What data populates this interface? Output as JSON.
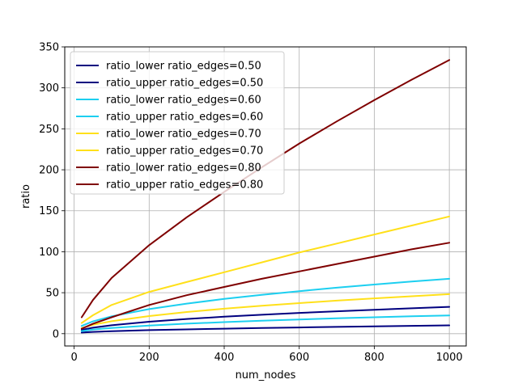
{
  "chart_data": {
    "type": "line",
    "title": "",
    "xlabel": "num_nodes",
    "ylabel": "ratio",
    "xlim": [
      -25,
      1045
    ],
    "ylim": [
      -15,
      350
    ],
    "xticks": [
      0,
      200,
      400,
      600,
      800,
      1000
    ],
    "yticks": [
      0,
      50,
      100,
      150,
      200,
      250,
      300,
      350
    ],
    "grid": true,
    "legend_position": "top-left",
    "series": [
      {
        "name": "ratio_lower  ratio_edges=0.50",
        "color": "#00007f",
        "x": [
          20,
          50,
          100,
          200,
          300,
          400,
          500,
          600,
          700,
          800,
          900,
          1000
        ],
        "y": [
          1.4,
          2.2,
          3.0,
          4.3,
          5.2,
          6.1,
          6.9,
          7.6,
          8.3,
          9.0,
          9.6,
          10.2
        ]
      },
      {
        "name": "ratio_upper  ratio_edges=0.50",
        "color": "#00007f",
        "x": [
          20,
          50,
          100,
          200,
          300,
          400,
          500,
          600,
          700,
          800,
          900,
          1000
        ],
        "y": [
          4.6,
          7.3,
          10.3,
          14.6,
          17.9,
          20.7,
          23.1,
          25.3,
          27.3,
          29.2,
          31.0,
          32.7
        ]
      },
      {
        "name": "ratio_lower  ratio_edges=0.60",
        "color": "#1ccff0",
        "x": [
          20,
          50,
          100,
          200,
          300,
          400,
          500,
          600,
          700,
          800,
          900,
          1000
        ],
        "y": [
          3.2,
          5.0,
          7.0,
          9.9,
          12.2,
          14.1,
          15.8,
          17.3,
          18.7,
          20.0,
          21.2,
          22.3
        ]
      },
      {
        "name": "ratio_upper  ratio_edges=0.60",
        "color": "#1ccff0",
        "x": [
          20,
          50,
          100,
          200,
          300,
          400,
          500,
          600,
          700,
          800,
          900,
          1000
        ],
        "y": [
          9.5,
          15.0,
          21.2,
          30.0,
          36.7,
          42.4,
          47.4,
          51.9,
          56.1,
          60.0,
          63.6,
          67.0
        ]
      },
      {
        "name": "ratio_lower  ratio_edges=0.70",
        "color": "#ffe01a",
        "x": [
          20,
          50,
          100,
          200,
          300,
          400,
          500,
          600,
          700,
          800,
          900,
          1000
        ],
        "y": [
          6.8,
          10.8,
          15.2,
          21.5,
          26.4,
          30.5,
          34.1,
          37.3,
          40.3,
          43.1,
          45.7,
          48.2
        ]
      },
      {
        "name": "ratio_upper  ratio_edges=0.70",
        "color": "#ffe01a",
        "x": [
          20,
          50,
          100,
          200,
          300,
          400,
          500,
          600,
          700,
          800,
          900,
          1000
        ],
        "y": [
          13.0,
          22.5,
          35.0,
          51.0,
          63.0,
          75.0,
          87.0,
          99.0,
          110.0,
          121.0,
          132.0,
          143.0
        ]
      },
      {
        "name": "ratio_lower  ratio_edges=0.80",
        "color": "#7f0000",
        "x": [
          20,
          50,
          100,
          200,
          300,
          400,
          500,
          600,
          700,
          800,
          900,
          1000
        ],
        "y": [
          6.0,
          12.0,
          20.0,
          35.0,
          47.0,
          57.0,
          67.0,
          76.0,
          85.0,
          94.0,
          103.0,
          111.0
        ]
      },
      {
        "name": "ratio_upper  ratio_edges=0.80",
        "color": "#7f0000",
        "x": [
          20,
          50,
          100,
          200,
          300,
          400,
          500,
          600,
          700,
          800,
          900,
          1000
        ],
        "y": [
          20.0,
          41.0,
          68.0,
          108.0,
          142.0,
          173.0,
          203.0,
          232.0,
          259.0,
          285.0,
          310.0,
          334.0
        ]
      }
    ]
  }
}
